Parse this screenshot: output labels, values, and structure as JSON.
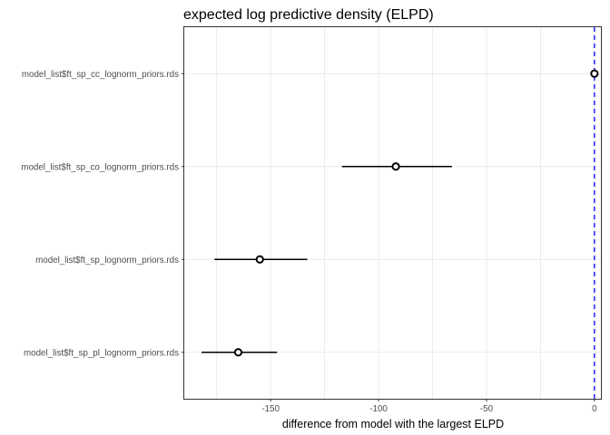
{
  "chart_data": {
    "type": "scatter",
    "subtype": "point-interval",
    "title": "expected log predictive density (ELPD)",
    "xlabel": "difference from model with the largest ELPD",
    "ylabel": "",
    "xlim": [
      -190,
      3
    ],
    "xticks": [
      -150,
      -100,
      -50,
      0
    ],
    "xtick_labels": [
      "-150",
      "-100",
      "-50",
      "0"
    ],
    "grid": true,
    "legend": "none",
    "reference_line": {
      "x": 0,
      "style": "dashed",
      "color": "#0000ff"
    },
    "categories": [
      "model_list$ft_sp_cc_lognorm_priors.rds",
      "model_list$ft_sp_co_lognorm_priors.rds",
      "model_list$ft_sp_lognorm_priors.rds",
      "model_list$ft_sp_pl_lognorm_priors.rds"
    ],
    "values": [
      0,
      -92,
      -155,
      -165
    ],
    "interval_low": [
      0,
      -117,
      -176,
      -182
    ],
    "interval_high": [
      0,
      -66,
      -133,
      -147
    ]
  }
}
